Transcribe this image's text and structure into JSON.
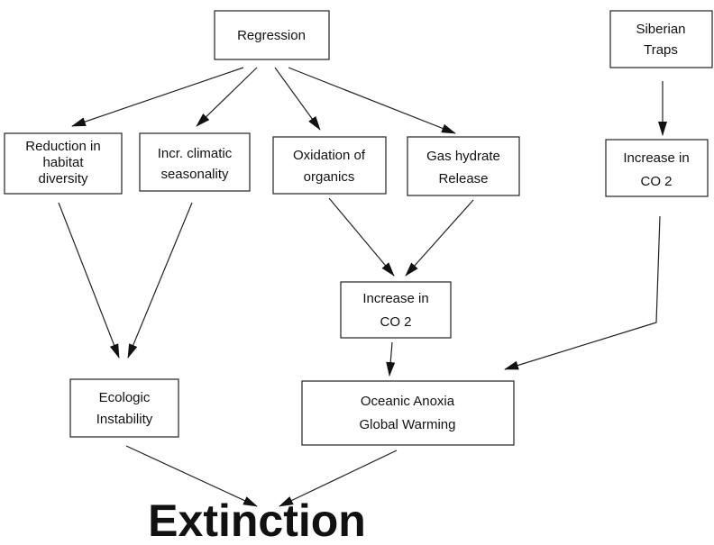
{
  "nodes": [
    {
      "lines": [
        "Regression"
      ]
    },
    {
      "lines": [
        "Siberian",
        "Traps"
      ]
    },
    {
      "lines": [
        "Reduction in",
        "habitat",
        "diversity"
      ]
    },
    {
      "lines": [
        "Incr. climatic",
        "seasonality"
      ]
    },
    {
      "lines": [
        "Oxidation of",
        "organics"
      ]
    },
    {
      "lines": [
        "Gas hydrate",
        "Release"
      ]
    },
    {
      "lines": [
        "Increase in",
        "CO 2"
      ]
    },
    {
      "lines": [
        "Increase in",
        "CO 2"
      ]
    },
    {
      "lines": [
        "Ecologic",
        "Instability"
      ]
    },
    {
      "lines": [
        "Oceanic Anoxia",
        "Global Warming"
      ]
    },
    {
      "lines": [
        "Extinction"
      ]
    }
  ]
}
